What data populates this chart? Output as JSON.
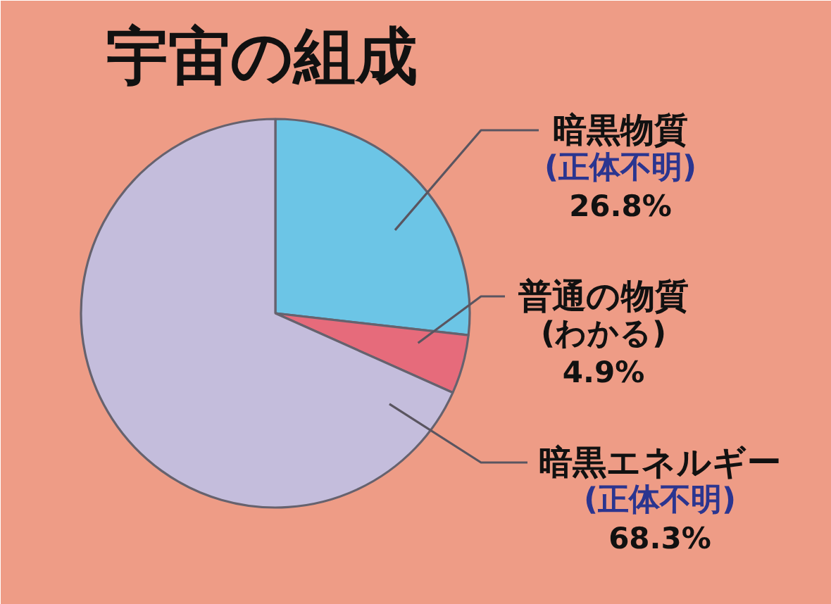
{
  "chart_data": {
    "type": "pie",
    "title": "宇宙の組成",
    "categories": [
      "暗黒物質\n(正体不明)",
      "普通の物質\n(わかる)",
      "暗黒エネルギー\n(正体不明)"
    ],
    "values": [
      26.8,
      4.9,
      68.3
    ],
    "colors": [
      "#6cc5e6",
      "#e66b7b",
      "#c4bddc"
    ],
    "value_labels": [
      "26.8%",
      "4.9%",
      "68.3%"
    ]
  }
}
